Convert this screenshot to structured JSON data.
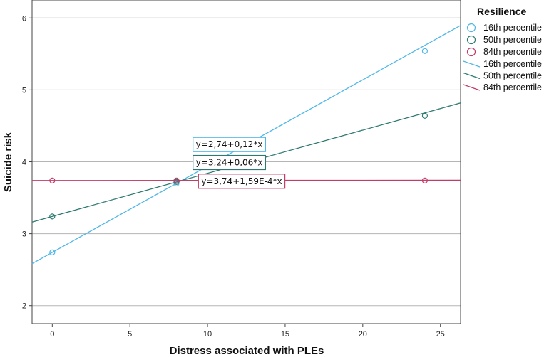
{
  "chart_data": {
    "type": "line",
    "xlabel": "Distress associated with PLEs",
    "ylabel": "Suicide risk",
    "xlim": [
      -1.3,
      26.3
    ],
    "ylim": [
      1.75,
      6.25
    ],
    "x_ticks": [
      0,
      5,
      10,
      15,
      20,
      25
    ],
    "y_ticks": [
      2,
      3,
      4,
      5,
      6
    ],
    "grid": "horizontal",
    "legend": {
      "title": "Resilience",
      "placement": "right",
      "marker_entries": [
        "16th percentile",
        "50th percentile",
        "84th percentile"
      ],
      "line_entries": [
        "16th percentile",
        "50th percentile",
        "84th percentile"
      ]
    },
    "series": [
      {
        "name": "16th percentile",
        "color": "#4fb7e8",
        "intercept": 2.74,
        "slope": 0.12,
        "points": [
          [
            0,
            2.74
          ],
          [
            8,
            3.7
          ],
          [
            24,
            5.54
          ]
        ],
        "equation": "y=2,74+0,12*x",
        "equation_at": [
          11.4,
          4.24
        ]
      },
      {
        "name": "50th percentile",
        "color": "#2e7a72",
        "intercept": 3.24,
        "slope": 0.06,
        "points": [
          [
            0,
            3.24
          ],
          [
            8,
            3.72
          ],
          [
            24,
            4.64
          ]
        ],
        "equation": "y=3,24+0,06*x",
        "equation_at": [
          11.4,
          3.99
        ]
      },
      {
        "name": "84th percentile",
        "color": "#c23c66",
        "intercept": 3.74,
        "slope": 0.000159,
        "points": [
          [
            0,
            3.74
          ],
          [
            8,
            3.74
          ],
          [
            24,
            3.74
          ]
        ],
        "equation": "y=3,74+1,59E-4*x",
        "equation_at": [
          12.2,
          3.73
        ]
      }
    ]
  }
}
